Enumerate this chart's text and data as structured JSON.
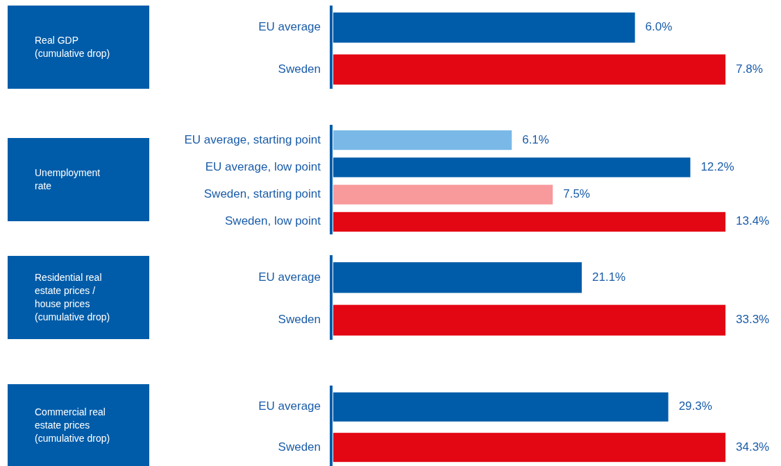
{
  "chart_data": [
    {
      "type": "bar",
      "orientation": "horizontal",
      "ylabel": "Real GDP\n(cumulative drop)",
      "categories": [
        "EU average",
        "Sweden"
      ],
      "values": [
        6.0,
        7.8
      ],
      "colors": [
        "#005ca9",
        "#e30613"
      ],
      "value_labels": [
        "6.0%",
        "7.8%"
      ]
    },
    {
      "type": "bar",
      "orientation": "horizontal",
      "ylabel": "Unemployment\nrate",
      "categories": [
        "EU average, starting point",
        "EU average, low point",
        "Sweden, starting point",
        "Sweden, low point"
      ],
      "values": [
        6.1,
        12.2,
        7.5,
        13.4
      ],
      "colors": [
        "#7ab9e7",
        "#005ca9",
        "#f8999b",
        "#e30613"
      ],
      "value_labels": [
        "6.1%",
        "12.2%",
        "7.5%",
        "13.4%"
      ]
    },
    {
      "type": "bar",
      "orientation": "horizontal",
      "ylabel": "Residential real\nestate prices /\nhouse prices\n(cumulative drop)",
      "categories": [
        "EU average",
        "Sweden"
      ],
      "values": [
        21.1,
        33.3
      ],
      "colors": [
        "#005ca9",
        "#e30613"
      ],
      "value_labels": [
        "21.1%",
        "33.3%"
      ]
    },
    {
      "type": "bar",
      "orientation": "horizontal",
      "ylabel": "Commercial real\nestate prices\n(cumulative drop)",
      "categories": [
        "EU average",
        "Sweden"
      ],
      "values": [
        29.3,
        34.3
      ],
      "colors": [
        "#005ca9",
        "#e30613"
      ],
      "value_labels": [
        "29.3%",
        "34.3%"
      ]
    }
  ]
}
